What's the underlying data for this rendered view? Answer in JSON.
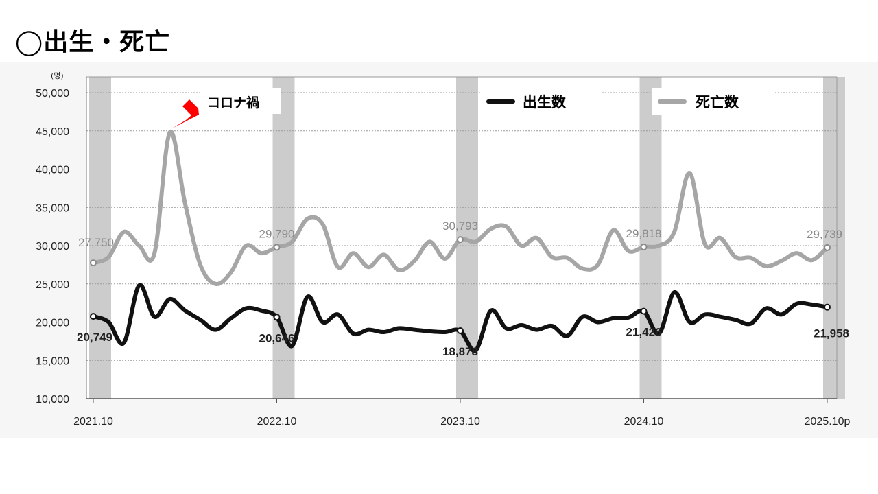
{
  "page": {
    "title": "◯出生・死亡"
  },
  "chart_data": {
    "type": "line",
    "unit": "(명)",
    "ylim": [
      10000,
      50000
    ],
    "yticks": [
      "10,000",
      "15,000",
      "20,000",
      "25,000",
      "30,000",
      "35,000",
      "40,000",
      "45,000",
      "50,000"
    ],
    "xtick_labels": [
      "2021.10",
      "2022.10",
      "2023.10",
      "2024.10",
      "2025.10p"
    ],
    "annotation": "コロナ禍",
    "grid": true,
    "legend_position": "top-right",
    "colors": {
      "birth": "#111111",
      "death": "#a6a6a6",
      "highlight": "#cccccc",
      "arrow": "#ff0000"
    },
    "x": [
      "2021.10",
      "2021.11",
      "2021.12",
      "2022.01",
      "2022.02",
      "2022.03",
      "2022.04",
      "2022.05",
      "2022.06",
      "2022.07",
      "2022.08",
      "2022.09",
      "2022.10",
      "2022.11",
      "2022.12",
      "2023.01",
      "2023.02",
      "2023.03",
      "2023.04",
      "2023.05",
      "2023.06",
      "2023.07",
      "2023.08",
      "2023.09",
      "2023.10",
      "2023.11",
      "2023.12",
      "2024.01",
      "2024.02",
      "2024.03",
      "2024.04",
      "2024.05",
      "2024.06",
      "2024.07",
      "2024.08",
      "2024.09",
      "2024.10",
      "2024.11",
      "2024.12",
      "2025.01",
      "2025.02",
      "2025.03",
      "2025.04",
      "2025.05",
      "2025.06",
      "2025.07",
      "2025.08",
      "2025.09",
      "2025.10p"
    ],
    "series": [
      {
        "name": "出生数",
        "values": [
          20749,
          20000,
          17300,
          24800,
          20700,
          23000,
          21500,
          20300,
          19000,
          20500,
          21800,
          21500,
          20646,
          16900,
          23300,
          20000,
          21000,
          18500,
          19000,
          18700,
          19200,
          19000,
          18800,
          18700,
          18878,
          16300,
          21500,
          19200,
          19600,
          19000,
          19500,
          18200,
          20700,
          20000,
          20500,
          20600,
          21426,
          18500,
          23900,
          20000,
          21000,
          20700,
          20300,
          19800,
          21800,
          21000,
          22400,
          22300,
          21958
        ]
      },
      {
        "name": "死亡数",
        "values": [
          27750,
          28500,
          31800,
          30000,
          29000,
          44800,
          35500,
          27500,
          25000,
          26500,
          30000,
          29000,
          29790,
          30500,
          33500,
          32800,
          27200,
          29000,
          27200,
          28800,
          26800,
          28000,
          30500,
          28300,
          30793,
          30500,
          32200,
          32500,
          30000,
          31000,
          28500,
          28400,
          27000,
          27500,
          32000,
          29300,
          29818,
          30000,
          31800,
          39500,
          30200,
          31000,
          28500,
          28400,
          27300,
          28000,
          29000,
          28100,
          29739
        ]
      }
    ],
    "labeled_points": [
      {
        "series": "死亡数",
        "x": "2021.10",
        "label": "27,750"
      },
      {
        "series": "死亡数",
        "x": "2022.10",
        "label": "29,790"
      },
      {
        "series": "死亡数",
        "x": "2023.10",
        "label": "30,793"
      },
      {
        "series": "死亡数",
        "x": "2024.10",
        "label": "29,818"
      },
      {
        "series": "死亡数",
        "x": "2025.10p",
        "label": "29,739"
      },
      {
        "series": "出生数",
        "x": "2021.10",
        "label": "20,749"
      },
      {
        "series": "出生数",
        "x": "2022.10",
        "label": "20,646"
      },
      {
        "series": "出生数",
        "x": "2023.10",
        "label": "18,878"
      },
      {
        "series": "出生数",
        "x": "2024.10",
        "label": "21,426"
      },
      {
        "series": "出生数",
        "x": "2025.10p",
        "label": "21,958"
      }
    ]
  }
}
